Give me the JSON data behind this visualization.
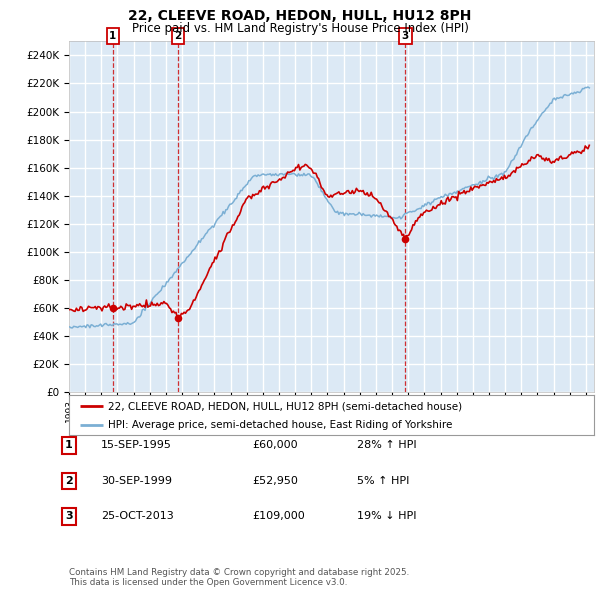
{
  "title_line1": "22, CLEEVE ROAD, HEDON, HULL, HU12 8PH",
  "title_line2": "Price paid vs. HM Land Registry's House Price Index (HPI)",
  "legend_label_red": "22, CLEEVE ROAD, HEDON, HULL, HU12 8PH (semi-detached house)",
  "legend_label_blue": "HPI: Average price, semi-detached house, East Riding of Yorkshire",
  "footnote": "Contains HM Land Registry data © Crown copyright and database right 2025.\nThis data is licensed under the Open Government Licence v3.0.",
  "transactions": [
    {
      "num": 1,
      "date_str": "15-SEP-1995",
      "price": 60000,
      "pct": "28%",
      "dir": "↑",
      "date_x": 1995.71
    },
    {
      "num": 2,
      "date_str": "30-SEP-1999",
      "price": 52950,
      "pct": "5%",
      "dir": "↑",
      "date_x": 1999.75
    },
    {
      "num": 3,
      "date_str": "25-OCT-2013",
      "price": 109000,
      "pct": "19%",
      "dir": "↓",
      "date_x": 2013.82
    }
  ],
  "ylim": [
    0,
    250000
  ],
  "yticks": [
    0,
    20000,
    40000,
    60000,
    80000,
    100000,
    120000,
    140000,
    160000,
    180000,
    200000,
    220000,
    240000
  ],
  "xlim_start": 1993.0,
  "xlim_end": 2025.5,
  "background_color": "#dce9f5",
  "grid_color": "#ffffff",
  "red_color": "#cc0000",
  "blue_color": "#7bafd4",
  "vline_color": "#cc0000",
  "title_fontsize": 10,
  "subtitle_fontsize": 8.5
}
